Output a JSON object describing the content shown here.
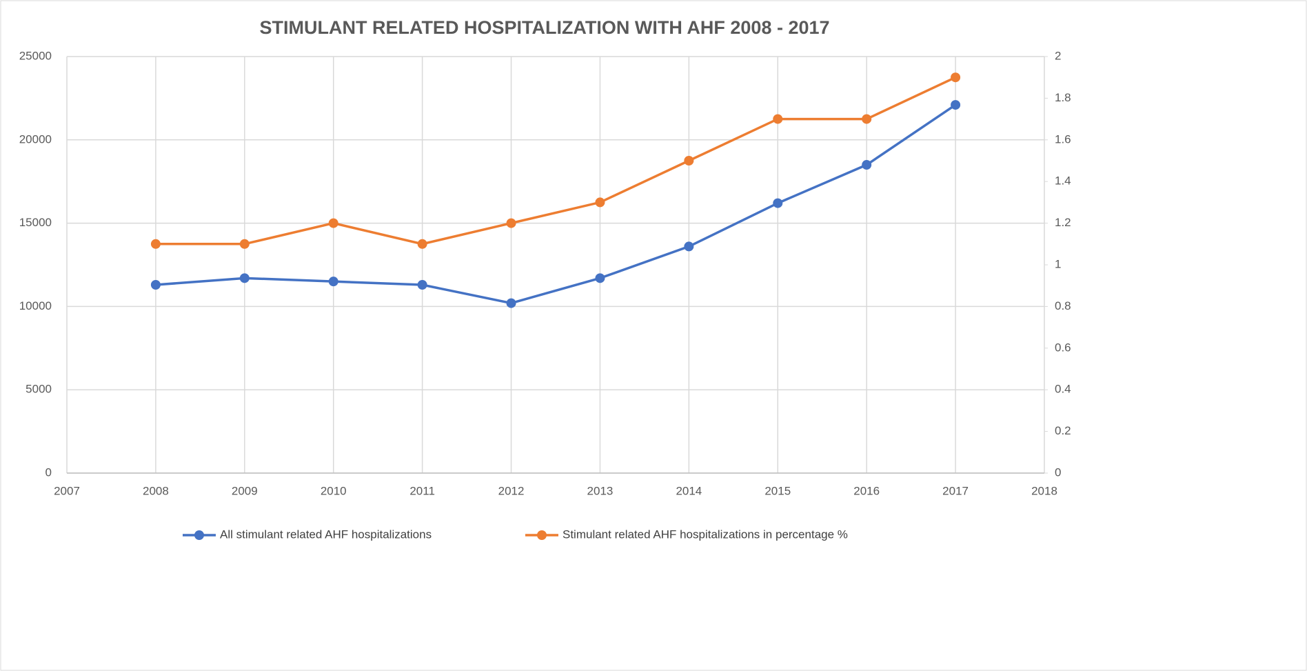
{
  "chart_data": {
    "type": "line",
    "title": "STIMULANT RELATED HOSPITALIZATION WITH AHF 2008 - 2017",
    "x": [
      2008,
      2009,
      2010,
      2011,
      2012,
      2013,
      2014,
      2015,
      2016,
      2017
    ],
    "series": [
      {
        "name": "All stimulant related AHF hospitalizations",
        "color": "#4472c4",
        "values": [
          11300,
          11700,
          11500,
          11300,
          10200,
          11700,
          13600,
          16200,
          18500,
          22100
        ]
      },
      {
        "name": "Stimulant related AHF hospitalizations in percentage %",
        "color": "#ed7d31",
        "axis": "y2",
        "values": [
          1.1,
          1.1,
          1.2,
          1.1,
          1.2,
          1.3,
          1.5,
          1.7,
          1.7,
          1.9
        ]
      }
    ],
    "xlim": [
      2007,
      2018
    ],
    "xticks": [
      2007,
      2008,
      2009,
      2010,
      2011,
      2012,
      2013,
      2014,
      2015,
      2016,
      2017,
      2018
    ],
    "ylim": [
      0,
      25000
    ],
    "yticks": [
      0,
      5000,
      10000,
      15000,
      20000,
      25000
    ],
    "y2lim": [
      0,
      2
    ],
    "y2ticks": [
      0,
      0.2,
      0.4,
      0.6,
      0.8,
      1,
      1.2,
      1.4,
      1.6,
      1.8,
      2
    ],
    "grid": true,
    "legend": "bottom"
  }
}
